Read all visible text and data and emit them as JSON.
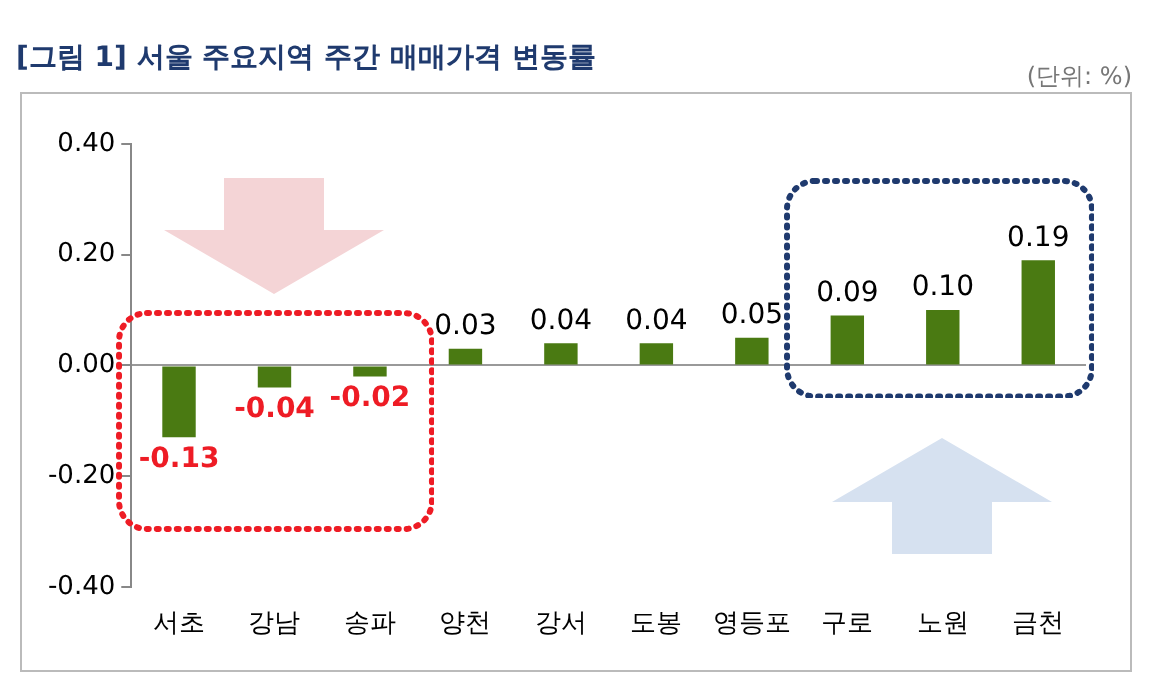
{
  "chart_data": {
    "type": "bar",
    "title": "[그림 1] 서울 주요지역 주간 매매가격 변동률",
    "annotations": [
      "(단위: %)"
    ],
    "categories": [
      "서초",
      "강남",
      "송파",
      "양천",
      "강서",
      "도봉",
      "영등포",
      "구로",
      "노원",
      "금천"
    ],
    "values": [
      -0.13,
      -0.04,
      -0.02,
      0.03,
      0.04,
      0.04,
      0.05,
      0.09,
      0.1,
      0.19
    ],
    "color": "#4a7a12",
    "ylim": [
      -0.4,
      0.4
    ],
    "yticks": [
      {
        "value": -0.4,
        "label": "-0.40"
      },
      {
        "value": -0.2,
        "label": "-0.20"
      },
      {
        "value": 0,
        "label": "0.00"
      },
      {
        "value": 0.2,
        "label": "0.20"
      },
      {
        "value": 0.4,
        "label": "0.40"
      }
    ],
    "value_labels": [
      "-0.13",
      "-0.04",
      "-0.02",
      "0.03",
      "0.04",
      "0.04",
      "0.05",
      "0.09",
      "0.10",
      "0.19"
    ],
    "legend": false
  }
}
